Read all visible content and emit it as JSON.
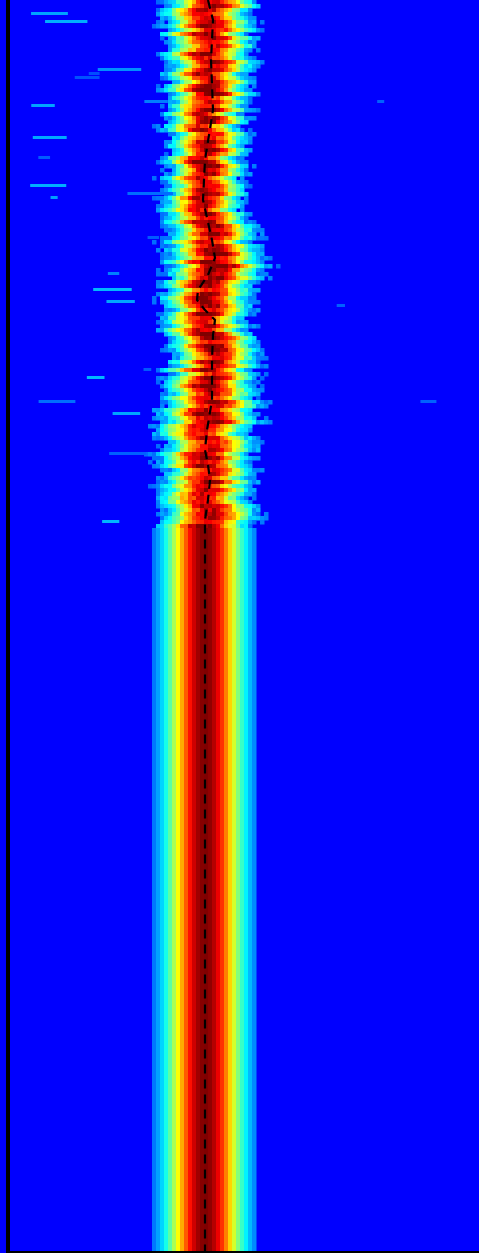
{
  "chart_data": {
    "type": "heatmap",
    "title": "",
    "xlabel": "",
    "ylabel": "",
    "colormap": "jet",
    "colors": {
      "background": "#0000ff",
      "peak": "#ff0000",
      "axis": "#000000",
      "trace": "#000000"
    },
    "grid": false,
    "legend": "none",
    "rows_y": [
      0,
      52,
      104,
      156,
      209,
      261,
      313,
      365,
      417,
      469,
      521,
      574,
      626,
      678,
      730,
      782,
      834,
      886,
      939,
      991,
      1043,
      1095,
      1147,
      1199,
      1253
    ],
    "band_center": [
      210,
      209,
      207,
      205,
      205,
      215,
      205,
      212,
      208,
      205,
      205,
      205,
      205,
      205,
      205,
      205,
      205,
      205,
      205,
      205,
      205,
      205,
      205,
      205,
      205
    ],
    "band_halfwidth": [
      52,
      50,
      46,
      44,
      46,
      55,
      49,
      50,
      56,
      52,
      55,
      55,
      55,
      55,
      55,
      55,
      55,
      55,
      55,
      55,
      55,
      55,
      55,
      55,
      55
    ],
    "peak_trace": {
      "style": "dashed",
      "y": [
        0,
        20,
        60,
        110,
        160,
        200,
        240,
        258,
        275,
        290,
        300,
        310,
        320,
        335,
        360,
        400,
        430,
        450,
        465,
        480,
        500,
        520,
        600,
        800,
        1000,
        1253
      ],
      "x": [
        208,
        213,
        211,
        213,
        205,
        203,
        212,
        215,
        208,
        198,
        197,
        205,
        215,
        213,
        212,
        212,
        207,
        205,
        208,
        210,
        208,
        205,
        205,
        205,
        205,
        205
      ]
    },
    "noise_transition_y": 525
  }
}
